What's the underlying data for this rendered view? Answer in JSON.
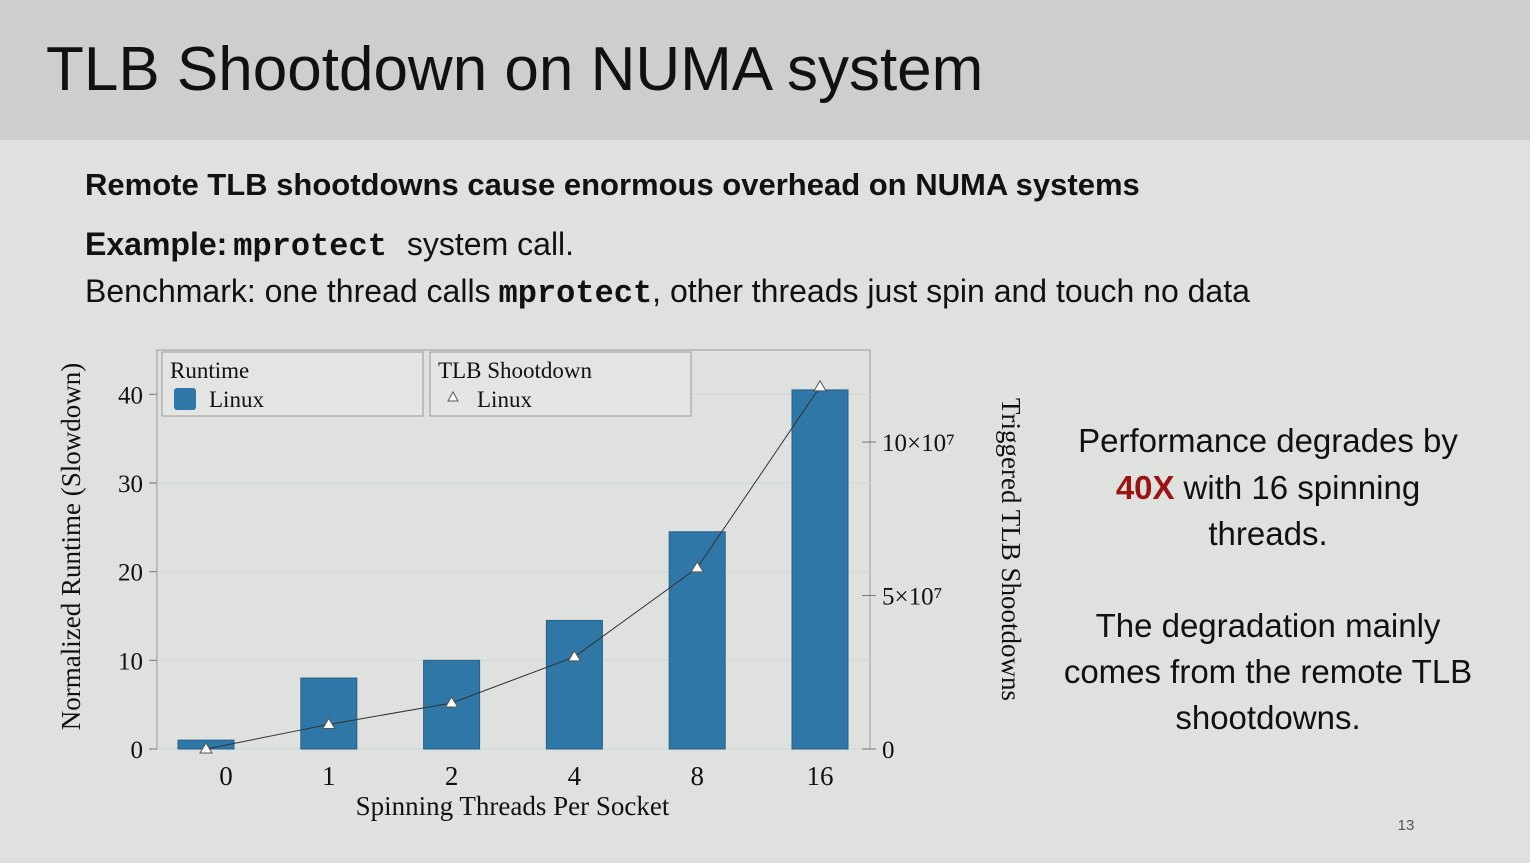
{
  "header": {
    "title": "TLB Shootdown on NUMA system"
  },
  "body": {
    "headline": "Remote TLB shootdowns cause enormous overhead on NUMA systems",
    "example": {
      "label": "Example:",
      "code": "mprotect",
      "text": "system call."
    },
    "benchmark": {
      "text_before": "Benchmark: one thread calls",
      "code": "mprotect",
      "text_after": ", other threads just spin and touch no data"
    }
  },
  "chart_data": {
    "type": "bar",
    "categories": [
      "0",
      "1",
      "2",
      "4",
      "8",
      "16"
    ],
    "x_label": "Spinning Threads Per Socket",
    "y_label": "Normalized Runtime (Slowdown)",
    "y2_label": "Triggered TLB Shootdowns",
    "ylim": [
      0,
      45
    ],
    "yticks": [
      0,
      10,
      20,
      30,
      40
    ],
    "y2lim": [
      0,
      130000000
    ],
    "y2ticks": [
      0,
      {
        "value": 50000000,
        "label": "5×10⁷"
      },
      {
        "value": 100000000,
        "label": "10×10⁷"
      }
    ],
    "grid": true,
    "series": [
      {
        "name": "Linux",
        "legend_title": "Runtime",
        "type": "bar",
        "color": "#2e77a6",
        "values": [
          1,
          8,
          10,
          14.5,
          24.5,
          40.5
        ]
      },
      {
        "name": "Linux",
        "legend_title": "TLB Shootdown",
        "type": "line",
        "axis": "y2",
        "color": "#333333",
        "values": [
          0,
          8000000,
          15000000,
          30000000,
          59000000,
          118000000
        ]
      }
    ]
  },
  "side": {
    "lines1": [
      "Performance degrades by",
      "with 16 spinning",
      "threads."
    ],
    "highlight": "40X",
    "lines2": [
      "The degradation mainly",
      "comes from the remote TLB",
      "shootdowns."
    ]
  },
  "page_number": "13"
}
